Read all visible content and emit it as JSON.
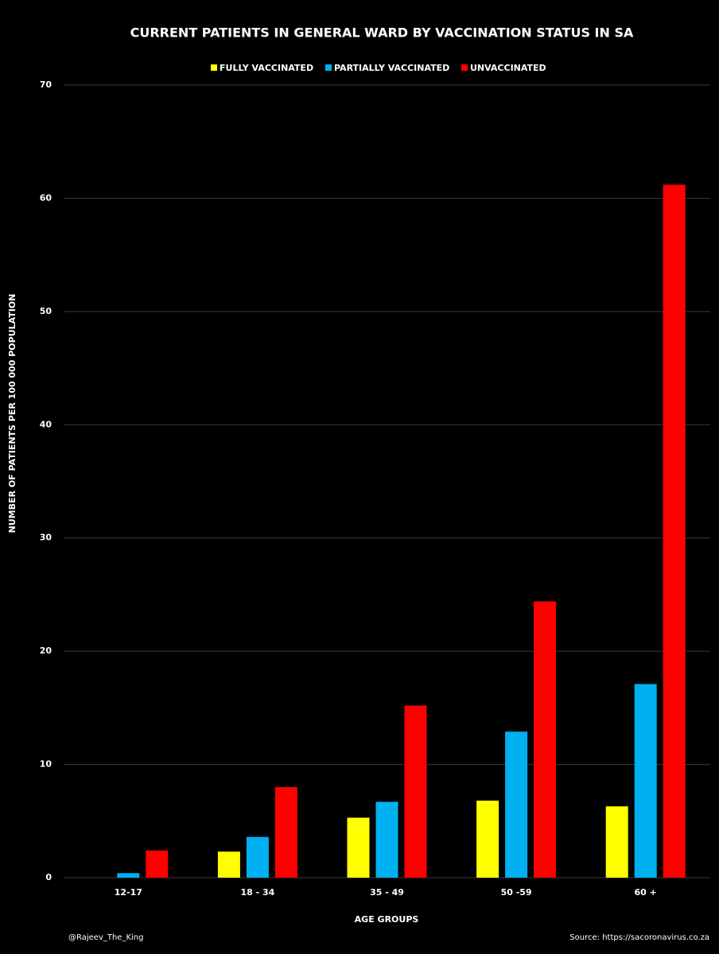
{
  "chart_data": {
    "type": "bar",
    "title": "CURRENT PATIENTS IN GENERAL WARD BY VACCINATION STATUS IN SA",
    "x_label": "AGE GROUPS",
    "y_label": "NUMBER OF PATIENTS PER 100 000 POPULATION",
    "categories": [
      "12-17",
      "18 - 34",
      "35 - 49",
      "50 -59",
      "60 +"
    ],
    "series": [
      {
        "name": "FULLY VACCINATED",
        "color": "#ffff00",
        "values": [
          0,
          2.3,
          5.3,
          6.8,
          6.3
        ]
      },
      {
        "name": "PARTIALLY VACCINATED",
        "color": "#00b0f0",
        "values": [
          0.4,
          3.6,
          6.7,
          12.9,
          17.1
        ]
      },
      {
        "name": "UNVACCINATED",
        "color": "#ff0000",
        "values": [
          2.4,
          8.0,
          15.2,
          24.4,
          61.2
        ]
      }
    ],
    "ylim": [
      0,
      70
    ],
    "yticks": [
      0,
      10,
      20,
      30,
      40,
      50,
      60,
      70
    ],
    "grid": true,
    "legend": "top",
    "credit": "@Rajeev_The_King",
    "source": "Source: https://sacoronavirus.co.za"
  }
}
